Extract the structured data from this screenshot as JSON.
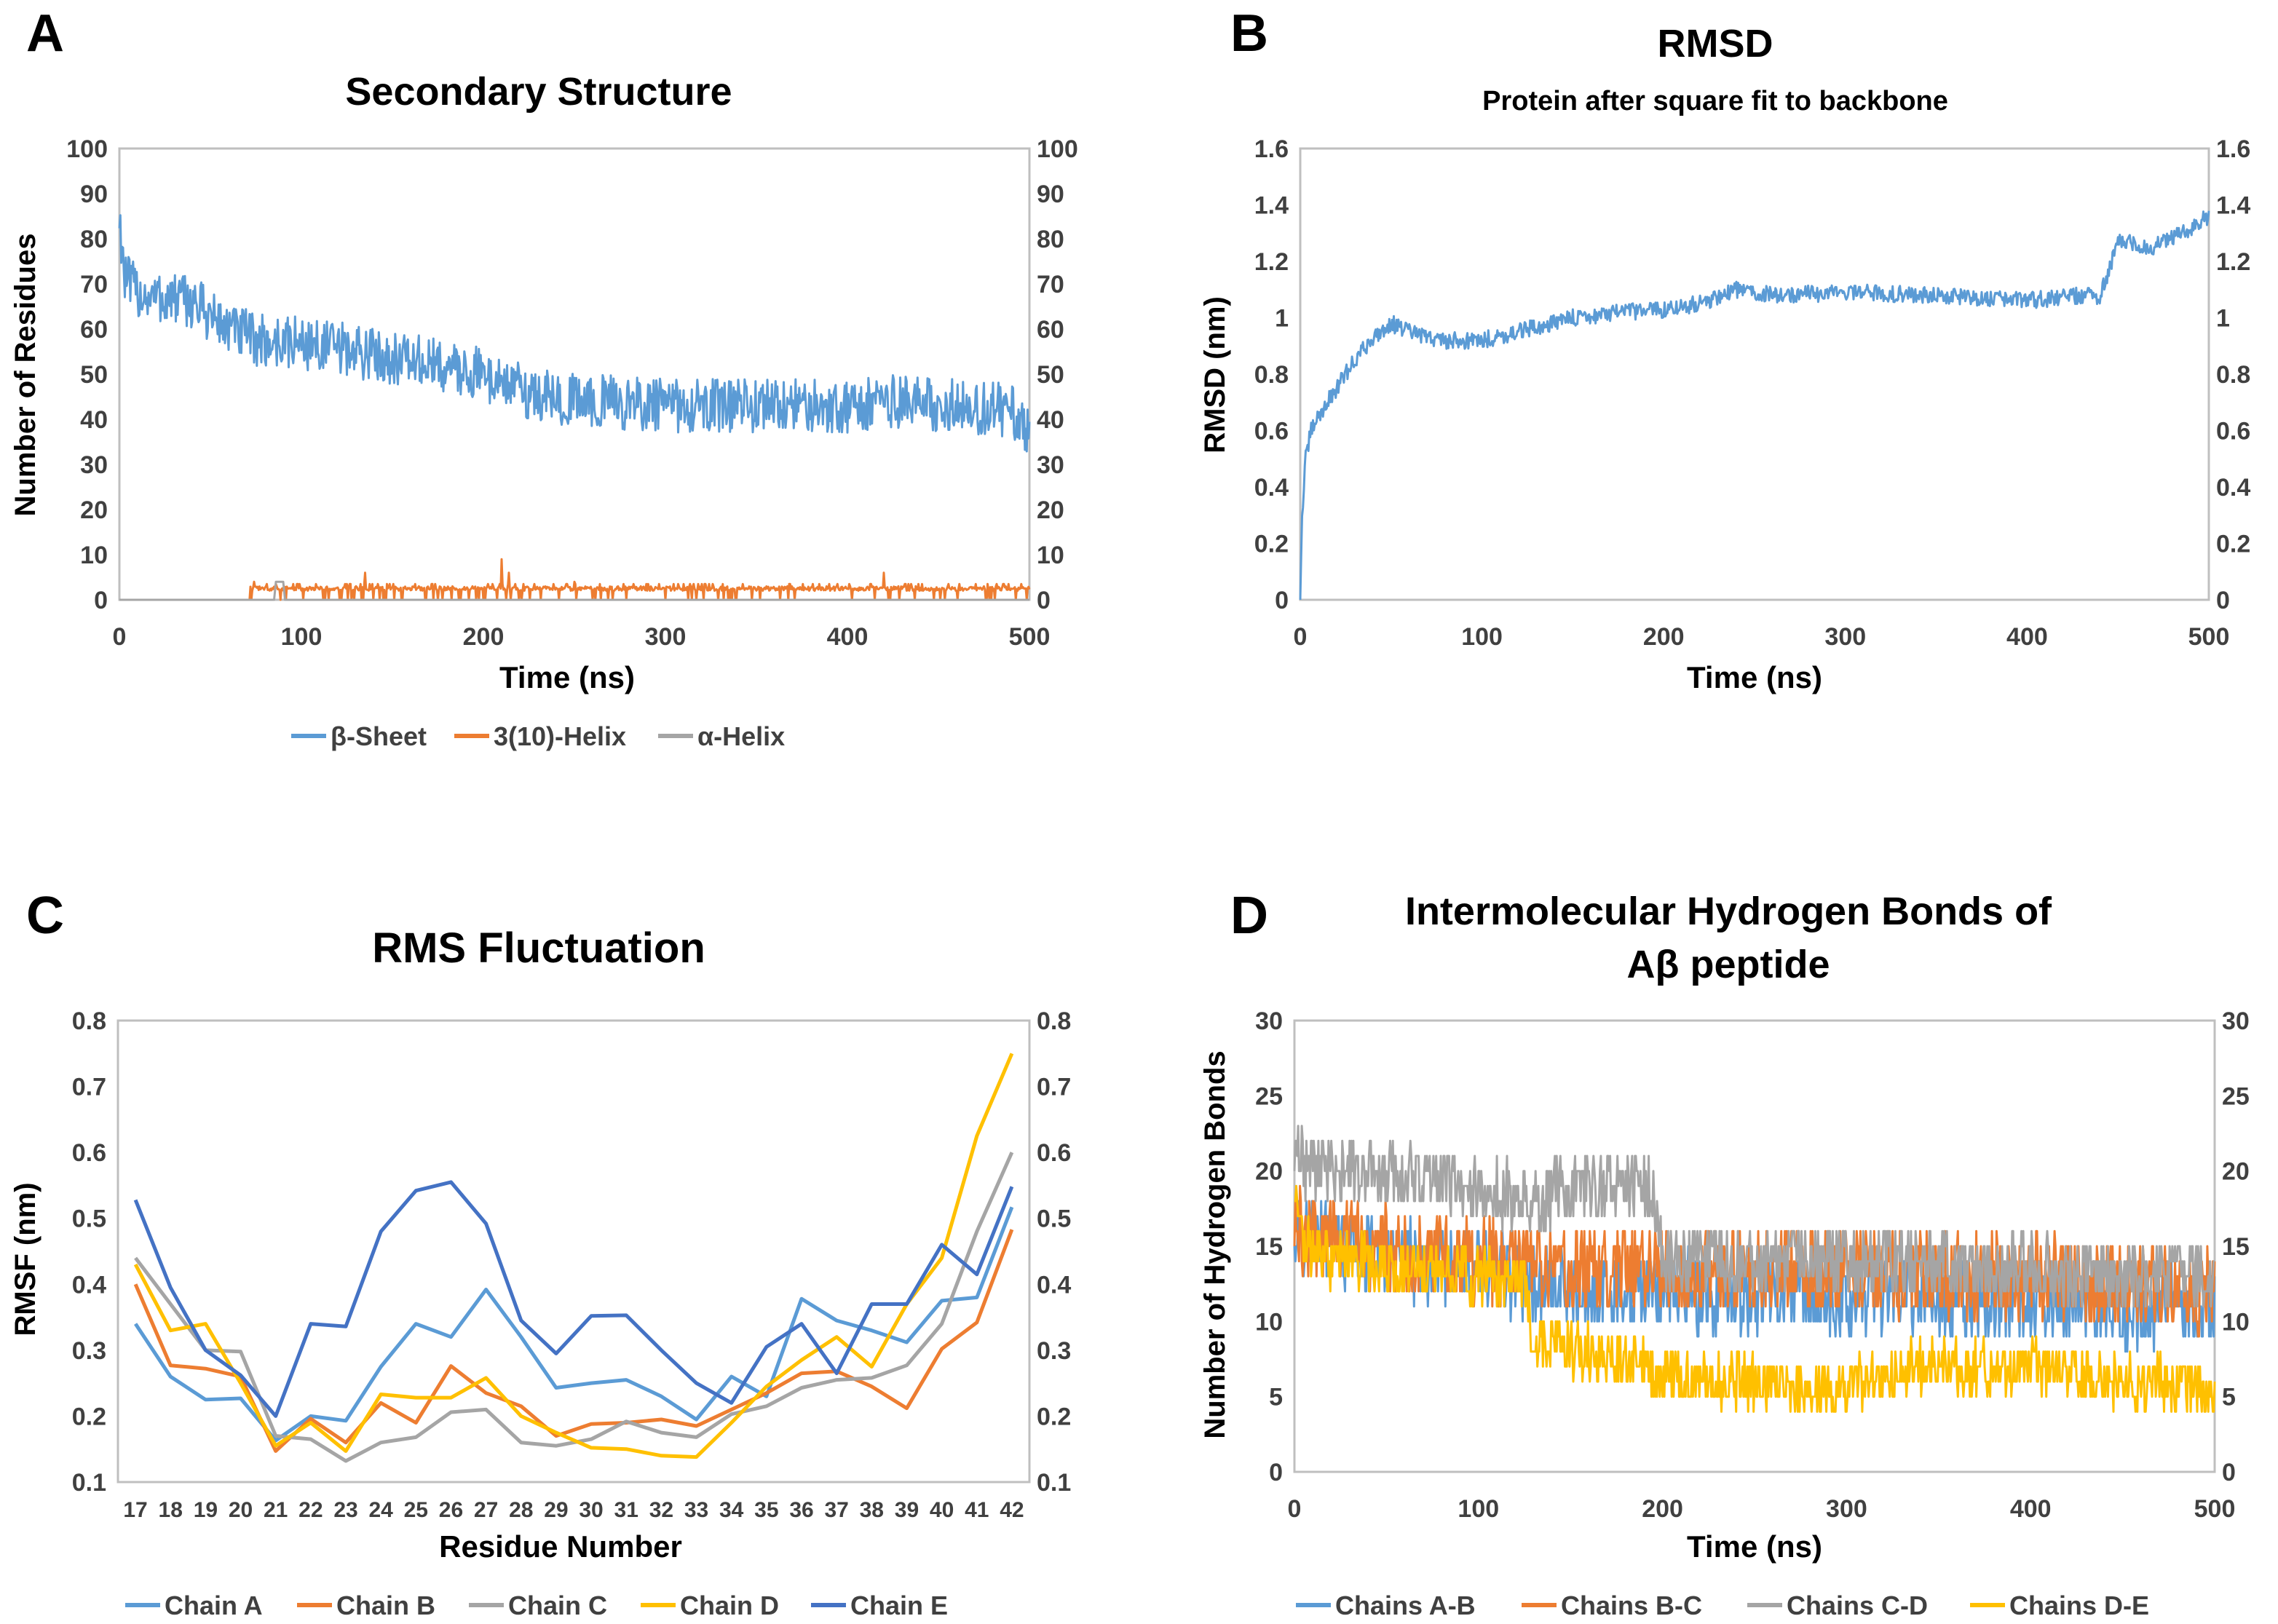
{
  "panels": [
    {
      "id": "A",
      "letter": "A",
      "chart_data": {
        "type": "line",
        "title": "Secondary Structure",
        "subtitle": "",
        "xlabel": "Time (ns)",
        "ylabel": "Number of Residues",
        "xlim": [
          0,
          500
        ],
        "ylim": [
          0,
          100
        ],
        "x_ticks": [
          0,
          100,
          200,
          300,
          400,
          500
        ],
        "y_ticks": [
          0,
          10,
          20,
          30,
          40,
          50,
          60,
          70,
          80,
          90,
          100
        ],
        "y_tick_labels": [
          "0",
          "10",
          "20",
          "30",
          "40",
          "50",
          "60",
          "70",
          "80",
          "90",
          "100"
        ],
        "right_axis_mirror": true,
        "grid": false,
        "legend_position": "bottom",
        "series": [
          {
            "name": "β-Sheet",
            "color": "#5B9BD5",
            "style": "noisy",
            "x": [
              0,
              3,
              10,
              20,
              40,
              60,
              80,
              100,
              130,
              160,
              200,
              230,
              260,
              300,
              330,
              360,
              400,
              430,
              460,
              490,
              500
            ],
            "y": [
              85,
              71,
              68,
              67,
              66,
              60,
              57,
              57,
              55,
              53,
              50,
              45,
              44,
              43,
              43,
              43,
              43,
              44,
              43,
              42,
              36
            ],
            "noise": 6
          },
          {
            "name": "3(10)-Helix",
            "color": "#ED7D31",
            "style": "spikes",
            "x": [
              72,
              500
            ],
            "y": [
              2.5,
              2.5
            ],
            "spikes": [
              {
                "x": 74,
                "y": 4
              },
              {
                "x": 135,
                "y": 6
              },
              {
                "x": 210,
                "y": 9
              },
              {
                "x": 214,
                "y": 6
              },
              {
                "x": 250,
                "y": 4
              },
              {
                "x": 420,
                "y": 6
              }
            ]
          },
          {
            "name": "α-Helix",
            "color": "#A5A5A5",
            "style": "line",
            "x": [
              0,
              85,
              86,
              90,
              91,
              500
            ],
            "y": [
              0,
              0,
              4,
              4,
              0,
              0
            ]
          }
        ]
      }
    },
    {
      "id": "B",
      "letter": "B",
      "chart_data": {
        "type": "line",
        "title": "RMSD",
        "subtitle": "Protein after square fit to backbone",
        "xlabel": "Time (ns)",
        "ylabel": "RMSD (nm)",
        "xlim": [
          0,
          500
        ],
        "ylim": [
          0,
          1.6
        ],
        "x_ticks": [
          0,
          100,
          200,
          300,
          400,
          500
        ],
        "y_ticks": [
          0,
          0.2,
          0.4,
          0.6,
          0.8,
          1.0,
          1.2,
          1.4,
          1.6
        ],
        "y_tick_labels": [
          "0",
          "0.2",
          "0.4",
          "0.6",
          "0.8",
          "1",
          "1.2",
          "1.4",
          "1.6"
        ],
        "right_axis_mirror": true,
        "grid": false,
        "legend_position": "none",
        "series": [
          {
            "name": "RMSD",
            "color": "#5B9BD5",
            "style": "noisy",
            "x": [
              0,
              1,
              3,
              6,
              10,
              15,
              20,
              30,
              40,
              50,
              60,
              70,
              80,
              100,
              120,
              150,
              180,
              200,
              220,
              240,
              260,
              300,
              350,
              400,
              430,
              440,
              450,
              470,
              490,
              500
            ],
            "y": [
              0,
              0.3,
              0.5,
              0.6,
              0.65,
              0.7,
              0.75,
              0.85,
              0.93,
              0.98,
              0.95,
              0.93,
              0.92,
              0.92,
              0.95,
              1.0,
              1.02,
              1.03,
              1.05,
              1.1,
              1.08,
              1.09,
              1.08,
              1.06,
              1.08,
              1.07,
              1.27,
              1.25,
              1.32,
              1.36
            ],
            "noise": 0.03
          }
        ]
      }
    },
    {
      "id": "C",
      "letter": "C",
      "chart_data": {
        "type": "line",
        "title": "RMS Fluctuation",
        "subtitle": "",
        "xlabel": "Residue Number",
        "ylabel": "RMSF (nm)",
        "categories": [
          "17",
          "18",
          "19",
          "20",
          "21",
          "22",
          "23",
          "24",
          "25",
          "26",
          "27",
          "28",
          "29",
          "30",
          "31",
          "32",
          "33",
          "34",
          "35",
          "36",
          "37",
          "38",
          "39",
          "40",
          "41",
          "42"
        ],
        "ylim": [
          0.1,
          0.8
        ],
        "y_ticks": [
          0.1,
          0.2,
          0.3,
          0.4,
          0.5,
          0.6,
          0.7,
          0.8
        ],
        "y_tick_labels": [
          "0.1",
          "0.2",
          "0.3",
          "0.4",
          "0.5",
          "0.6",
          "0.7",
          "0.8"
        ],
        "right_axis_mirror": true,
        "grid": false,
        "legend_position": "bottom",
        "series": [
          {
            "name": "Chain A",
            "color": "#5B9BD5",
            "values": [
              0.34,
              0.26,
              0.225,
              0.227,
              0.163,
              0.2,
              0.193,
              0.275,
              0.34,
              0.32,
              0.392,
              0.32,
              0.243,
              0.25,
              0.255,
              0.23,
              0.195,
              0.26,
              0.23,
              0.378,
              0.345,
              0.33,
              0.312,
              0.375,
              0.38,
              0.517
            ]
          },
          {
            "name": "Chain B",
            "color": "#ED7D31",
            "values": [
              0.4,
              0.277,
              0.272,
              0.26,
              0.147,
              0.196,
              0.16,
              0.22,
              0.19,
              0.276,
              0.235,
              0.215,
              0.17,
              0.188,
              0.19,
              0.195,
              0.185,
              0.21,
              0.235,
              0.265,
              0.268,
              0.245,
              0.212,
              0.302,
              0.342,
              0.483
            ]
          },
          {
            "name": "Chain C",
            "color": "#A5A5A5",
            "values": [
              0.44,
              0.37,
              0.3,
              0.298,
              0.17,
              0.165,
              0.132,
              0.16,
              0.168,
              0.206,
              0.21,
              0.16,
              0.155,
              0.165,
              0.192,
              0.175,
              0.168,
              0.203,
              0.215,
              0.243,
              0.255,
              0.258,
              0.277,
              0.34,
              0.48,
              0.6
            ]
          },
          {
            "name": "Chain D",
            "color": "#FFC000",
            "values": [
              0.43,
              0.33,
              0.34,
              0.25,
              0.155,
              0.19,
              0.147,
              0.233,
              0.228,
              0.228,
              0.258,
              0.2,
              0.175,
              0.152,
              0.15,
              0.14,
              0.138,
              0.19,
              0.245,
              0.285,
              0.32,
              0.275,
              0.37,
              0.44,
              0.625,
              0.75
            ]
          },
          {
            "name": "Chain E",
            "color": "#4472C4",
            "values": [
              0.528,
              0.395,
              0.3,
              0.262,
              0.2,
              0.34,
              0.336,
              0.48,
              0.542,
              0.555,
              0.492,
              0.345,
              0.295,
              0.352,
              0.353,
              0.3,
              0.25,
              0.22,
              0.305,
              0.34,
              0.265,
              0.37,
              0.37,
              0.46,
              0.415,
              0.548
            ]
          }
        ]
      }
    },
    {
      "id": "D",
      "letter": "D",
      "chart_data": {
        "type": "line",
        "title": "Intermolecular Hydrogen Bonds of",
        "title_line2": "Aβ peptide",
        "subtitle": "",
        "xlabel": "Time (ns)",
        "ylabel": "Number of Hydrogen Bonds",
        "xlim": [
          0,
          500
        ],
        "ylim": [
          0,
          30
        ],
        "x_ticks": [
          0,
          100,
          200,
          300,
          400,
          500
        ],
        "y_ticks": [
          0,
          5,
          10,
          15,
          20,
          25,
          30
        ],
        "y_tick_labels": [
          "0",
          "5",
          "10",
          "15",
          "20",
          "25",
          "30"
        ],
        "right_axis_mirror": true,
        "grid": false,
        "legend_position": "bottom",
        "series": [
          {
            "name": "Chains A-B",
            "color": "#5B9BD5",
            "style": "noisy",
            "x": [
              0,
              20,
              60,
              100,
              130,
              160,
              200,
              250,
              300,
              350,
              400,
              450,
              500
            ],
            "y": [
              16,
              15,
              14,
              13.5,
              12.5,
              12,
              12,
              12,
              11.5,
              11.5,
              11.5,
              11,
              11
            ],
            "noise": 2.6
          },
          {
            "name": "Chains B-C",
            "color": "#ED7D31",
            "style": "noisy",
            "x": [
              0,
              50,
              100,
              150,
              200,
              250,
              300,
              350,
              400,
              450,
              500
            ],
            "y": [
              16,
              15,
              14,
              13.5,
              13.5,
              13.5,
              13.5,
              13,
              13,
              12.5,
              12
            ],
            "noise": 2.8
          },
          {
            "name": "Chains C-D",
            "color": "#A5A5A5",
            "style": "noisy",
            "x": [
              0,
              50,
              100,
              130,
              150,
              180,
              195,
              200,
              300,
              400,
              500
            ],
            "y": [
              20.5,
              20,
              19,
              18,
              19,
              19,
              19,
              14,
              14,
              13.5,
              13
            ],
            "noise": 2.2
          },
          {
            "name": "Chains D-E",
            "color": "#FFC000",
            "style": "noisy",
            "x": [
              0,
              5,
              20,
              60,
              100,
              125,
              130,
              160,
              200,
              250,
              300,
              330,
              400,
              450,
              500
            ],
            "y": [
              18,
              15,
              14,
              13.5,
              13,
              12.5,
              8.5,
              8,
              6.5,
              6,
              5.5,
              7,
              7,
              6,
              5.5
            ],
            "noise": 1.8
          }
        ]
      }
    }
  ]
}
